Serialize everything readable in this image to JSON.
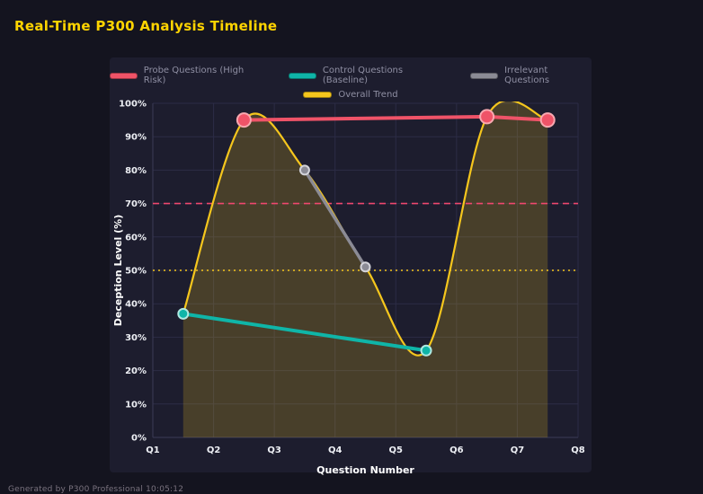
{
  "page": {
    "title": "Real-Time P300 Analysis Timeline",
    "footer": "Generated by P300 Professional  10:05:12"
  },
  "colors": {
    "background": "#14141f",
    "panel": "#1d1d2e",
    "grid": "#2c2c46",
    "axis_line": "#3a3a55",
    "title": "#ffd400",
    "axis_text": "#eef0f5",
    "legend_text": "#8f8fa3",
    "area_fill": "rgba(246,200,30,0.2)"
  },
  "chart_data": {
    "type": "line",
    "title": "Real-Time P300 Analysis Timeline",
    "xlabel": "Question Number",
    "ylabel": "Deception Level (%)",
    "x_ticks": [
      "Q1",
      "Q2",
      "Q3",
      "Q4",
      "Q5",
      "Q6",
      "Q7",
      "Q8"
    ],
    "y_ticks": [
      "0%",
      "10%",
      "20%",
      "30%",
      "40%",
      "50%",
      "60%",
      "70%",
      "80%",
      "90%",
      "100%"
    ],
    "xlim": [
      1,
      8
    ],
    "ylim": [
      0,
      100
    ],
    "grid": true,
    "legend_position": "top",
    "series": [
      {
        "name": "Probe Questions (High Risk)",
        "color": "#ef5368",
        "ring": "#f8a8b0",
        "marker_radius": 7.5,
        "line_width": 4,
        "x": [
          2.5,
          6.5,
          7.5
        ],
        "values": [
          95,
          96,
          95
        ]
      },
      {
        "name": "Control Questions (Baseline)",
        "color": "#0fb5a8",
        "ring": "#aee9e2",
        "marker_radius": 5.5,
        "line_width": 4,
        "x": [
          1.5,
          5.5
        ],
        "values": [
          37,
          26
        ]
      },
      {
        "name": "Irrelevant Questions",
        "color": "#8b8b95",
        "ring": "#d4d4da",
        "marker_radius": 5,
        "line_width": 3.5,
        "x": [
          3.5,
          4.5
        ],
        "values": [
          80,
          51
        ]
      },
      {
        "name": "Overall Trend",
        "color": "#f5c61d",
        "line_width": 2.2,
        "smooth": true,
        "fill": true,
        "x": [
          1.5,
          2.5,
          3.5,
          4.5,
          5.5,
          6.5,
          7.5
        ],
        "values": [
          37,
          95,
          80,
          51,
          26,
          96,
          95
        ]
      }
    ],
    "thresholds": [
      {
        "value": 70,
        "color": "#ef476f",
        "style": "dashed"
      },
      {
        "value": 50,
        "color": "#f5c61d",
        "style": "dotted"
      }
    ]
  }
}
